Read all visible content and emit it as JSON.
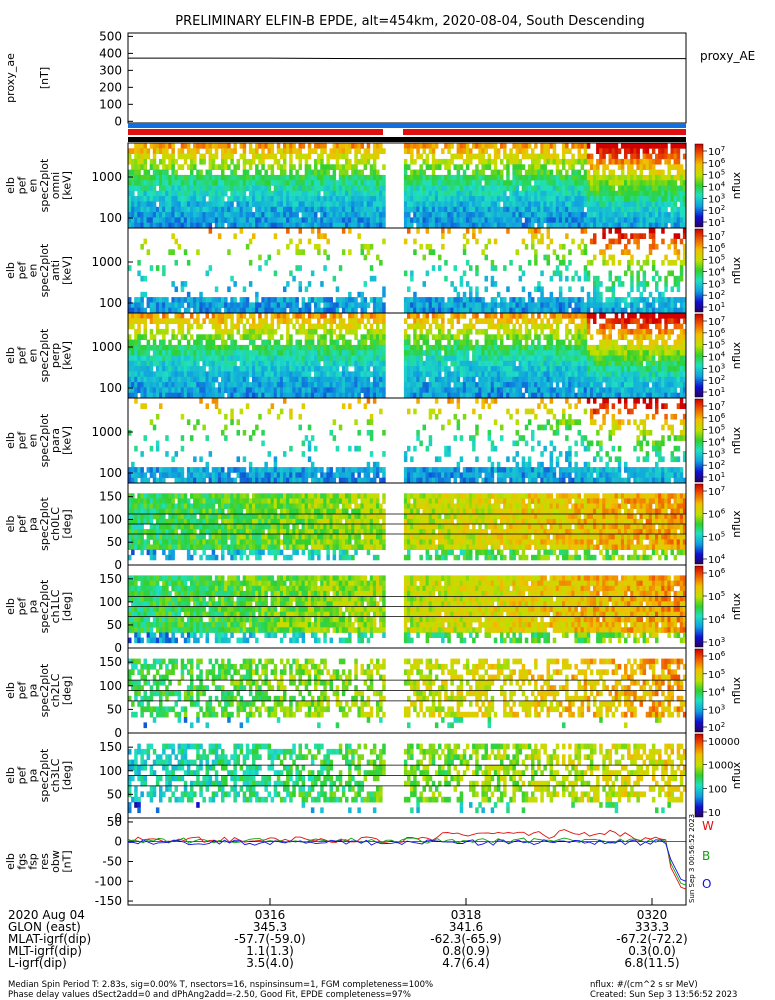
{
  "title": "PRELIMINARY ELFIN-B EPDE, alt=454km, 2020-08-04, South Descending",
  "colors": {
    "red": "#e01010",
    "blue": "#1070e0",
    "black": "#000000"
  },
  "chart_data": [
    {
      "type": "line",
      "name": "proxy_ae",
      "ylabel": [
        "proxy_ae",
        "[nT]"
      ],
      "yticks": [
        "500",
        "400",
        "300",
        "200",
        "100",
        "0"
      ],
      "ylim": [
        -10,
        520
      ],
      "legend": "proxy_AE",
      "values": [
        372,
        372,
        372,
        370,
        369,
        369,
        369,
        369,
        369
      ]
    },
    {
      "type": "heatmap",
      "name": "en_spec2plot_omni",
      "ylabel": [
        "elb",
        "pef",
        "en",
        "spec2plot",
        "omni",
        "[keV]"
      ],
      "yticks": [
        "1000",
        "100"
      ],
      "cbar_ticks": [
        "10^7",
        "10^6",
        "10^5",
        "10^4",
        "10^3",
        "10^2",
        "10^1"
      ],
      "cbar_label": "nflux"
    },
    {
      "type": "heatmap",
      "name": "en_spec2plot_anti",
      "ylabel": [
        "elb",
        "pef",
        "en",
        "spec2plot",
        "anti",
        "[keV]"
      ],
      "yticks": [
        "1000",
        "100"
      ],
      "cbar_ticks": [
        "10^7",
        "10^6",
        "10^5",
        "10^4",
        "10^3",
        "10^2",
        "10^1"
      ],
      "cbar_label": "nflux"
    },
    {
      "type": "heatmap",
      "name": "en_spec2plot_perp",
      "ylabel": [
        "elb",
        "pef",
        "en",
        "spec2plot",
        "perp",
        "[keV]"
      ],
      "yticks": [
        "1000",
        "100"
      ],
      "cbar_ticks": [
        "10^7",
        "10^6",
        "10^5",
        "10^4",
        "10^3",
        "10^2",
        "10^1"
      ],
      "cbar_label": "nflux"
    },
    {
      "type": "heatmap",
      "name": "en_spec2plot_para",
      "ylabel": [
        "elb",
        "pef",
        "en",
        "spec2plot",
        "para",
        "[keV]"
      ],
      "yticks": [
        "1000",
        "100"
      ],
      "cbar_ticks": [
        "10^7",
        "10^6",
        "10^5",
        "10^4",
        "10^3",
        "10^2",
        "10^1"
      ],
      "cbar_label": "nflux"
    },
    {
      "type": "heatmap",
      "name": "pa_spec2plot_ch0LC",
      "ylabel": [
        "elb",
        "pef",
        "pa",
        "spec2plot",
        "ch0LC",
        "[deg]"
      ],
      "yticks": [
        "150",
        "100",
        "50",
        "0"
      ],
      "cbar_ticks": [
        "10^7",
        "10^6",
        "10^5",
        "10^4"
      ],
      "cbar_label": "nflux"
    },
    {
      "type": "heatmap",
      "name": "pa_spec2plot_ch1LC",
      "ylabel": [
        "elb",
        "pef",
        "pa",
        "spec2plot",
        "ch1LC",
        "[deg]"
      ],
      "yticks": [
        "150",
        "100",
        "50",
        "0"
      ],
      "cbar_ticks": [
        "10^6",
        "10^5",
        "10^4",
        "10^3"
      ],
      "cbar_label": "nflux"
    },
    {
      "type": "heatmap",
      "name": "pa_spec2plot_ch2LC",
      "ylabel": [
        "elb",
        "pef",
        "pa",
        "spec2plot",
        "ch2LC",
        "[deg]"
      ],
      "yticks": [
        "150",
        "100",
        "50",
        "0"
      ],
      "cbar_ticks": [
        "10^6",
        "10^5",
        "10^4",
        "10^3",
        "10^2"
      ],
      "cbar_label": "nflux"
    },
    {
      "type": "heatmap",
      "name": "pa_spec2plot_ch3LC",
      "ylabel": [
        "elb",
        "pef",
        "pa",
        "spec2plot",
        "ch3LC",
        "[deg]"
      ],
      "yticks": [
        "150",
        "100",
        "50",
        "0"
      ],
      "cbar_ticks": [
        "10000",
        "1000",
        "100",
        "10"
      ],
      "cbar_label": "nflux"
    },
    {
      "type": "line",
      "name": "fgs_fsp_res_obw",
      "ylabel": [
        "elb",
        "fgs",
        "fsp",
        "res",
        "obw",
        "[nT]"
      ],
      "yticks": [
        "50",
        "0",
        "-50",
        "-100",
        "-150"
      ],
      "ylim": [
        -160,
        60
      ],
      "series": [
        {
          "name": "W",
          "color": "#e01010"
        },
        {
          "name": "B",
          "color": "#10a010"
        },
        {
          "name": "O",
          "color": "#1010e0"
        }
      ],
      "side_text": "Sun Sep 3 00:56:52 2023"
    }
  ],
  "xaxis": {
    "rows": [
      [
        "2020 Aug 04",
        "0316",
        "0318",
        "0320"
      ],
      [
        "GLON (east)",
        "345.3",
        "341.6",
        "333.3"
      ],
      [
        "MLAT-igrf(dip)",
        "-57.7(-59.0)",
        "-62.3(-65.9)",
        "-67.2(-72.2)"
      ],
      [
        "MLT-igrf(dip)",
        "1.1(1.3)",
        "0.8(0.9)",
        "0.3(0.0)"
      ],
      [
        "L-igrf(dip)",
        "3.5(4.0)",
        "4.7(6.4)",
        "6.8(11.5)"
      ]
    ]
  },
  "footer": {
    "line1": "Median Spin Period T: 2.83s, sig=0.00% T, nsectors=16, nspinsinsum=1, FGM completeness=100%",
    "line2": "Phase delay values dSect2add=0 and dPhAng2add=-2.50, Good Fit, EPDE completeness=97%",
    "right1": "nflux: #/(cm^2 s sr MeV)",
    "right2": "Created: Sun Sep  3 13:56:52 2023"
  }
}
